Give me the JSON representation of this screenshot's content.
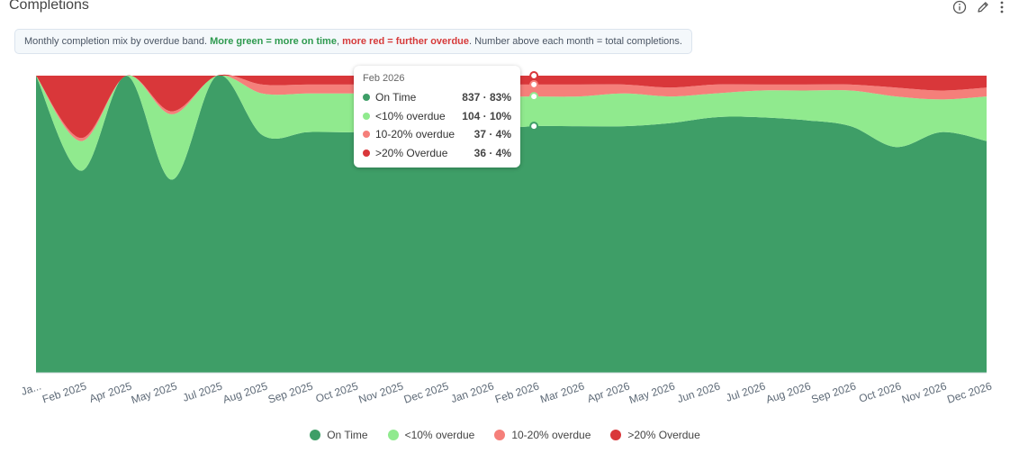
{
  "header": {
    "title": "Completions"
  },
  "icons": [
    "info-icon",
    "pencil-icon",
    "more-vertical-icon"
  ],
  "note": {
    "prefix": "Monthly completion mix by overdue band. ",
    "green_text": "More green = more on time",
    "sep": ", ",
    "red_text": "more red = further overdue",
    "suffix": ". Number above each month = total completions."
  },
  "colors": {
    "on_time": "#3e9e67",
    "lt10": "#90ea8e",
    "p10_20": "#f57f7a",
    "gt20": "#d9373a"
  },
  "chart_data": {
    "type": "area",
    "stacking": "percent",
    "categories": [
      "Jan 2025",
      "Feb 2025",
      "Apr 2025",
      "May 2025",
      "Jul 2025",
      "Aug 2025",
      "Sep 2025",
      "Oct 2025",
      "Nov 2025",
      "Dec 2025",
      "Jan 2026",
      "Feb 2026",
      "Mar 2026",
      "Apr 2026",
      "May 2026",
      "Jun 2026",
      "Jul 2026",
      "Aug 2026",
      "Sep 2026",
      "Oct 2026",
      "Nov 2026",
      "Dec 2026"
    ],
    "tick_labels": [
      "Ja...",
      "Feb 2025",
      "Apr 2025",
      "May 2025",
      "Jul 2025",
      "Aug 2025",
      "Sep 2025",
      "Oct 2025",
      "Nov 2025",
      "Dec 2025",
      "Jan 2026",
      "Feb 2026",
      "Mar 2026",
      "Apr 2026",
      "May 2026",
      "Jun 2026",
      "Jul 2026",
      "Aug 2026",
      "Sep 2026",
      "Oct 2026",
      "Nov 2026",
      "Dec 2026"
    ],
    "series": [
      {
        "name": "On Time",
        "values": [
          100,
          68,
          100,
          65,
          100,
          80,
          81,
          81,
          82,
          82,
          82,
          83,
          83,
          83,
          84,
          86,
          86,
          85,
          83,
          76,
          81,
          78
        ]
      },
      {
        "name": "<10% overdue",
        "values": [
          0,
          10,
          0,
          22,
          0,
          14,
          13,
          13,
          12,
          12,
          11,
          10,
          10,
          11,
          9,
          8,
          9,
          10,
          12,
          17,
          11,
          15
        ]
      },
      {
        "name": "10-20% overdue",
        "values": [
          0,
          1,
          0,
          1,
          0,
          3,
          3,
          3,
          3,
          3,
          4,
          4,
          4,
          3,
          3,
          3,
          2,
          2,
          2,
          3,
          3,
          3
        ]
      },
      {
        "name": ">20% Overdue",
        "values": [
          0,
          21,
          0,
          12,
          0,
          3,
          3,
          3,
          3,
          3,
          3,
          3,
          3,
          3,
          4,
          3,
          3,
          3,
          3,
          4,
          5,
          4
        ]
      }
    ],
    "ylim": [
      0,
      100
    ],
    "legend": "bottom-center",
    "tooltip": {
      "category": "Feb 2026",
      "rows": [
        {
          "name": "On Time",
          "value": "837 · 83%"
        },
        {
          "name": "<10% overdue",
          "value": "104 · 10%"
        },
        {
          "name": "10-20% overdue",
          "value": "37 · 4%"
        },
        {
          "name": ">20% Overdue",
          "value": "36 · 4%"
        }
      ]
    }
  }
}
